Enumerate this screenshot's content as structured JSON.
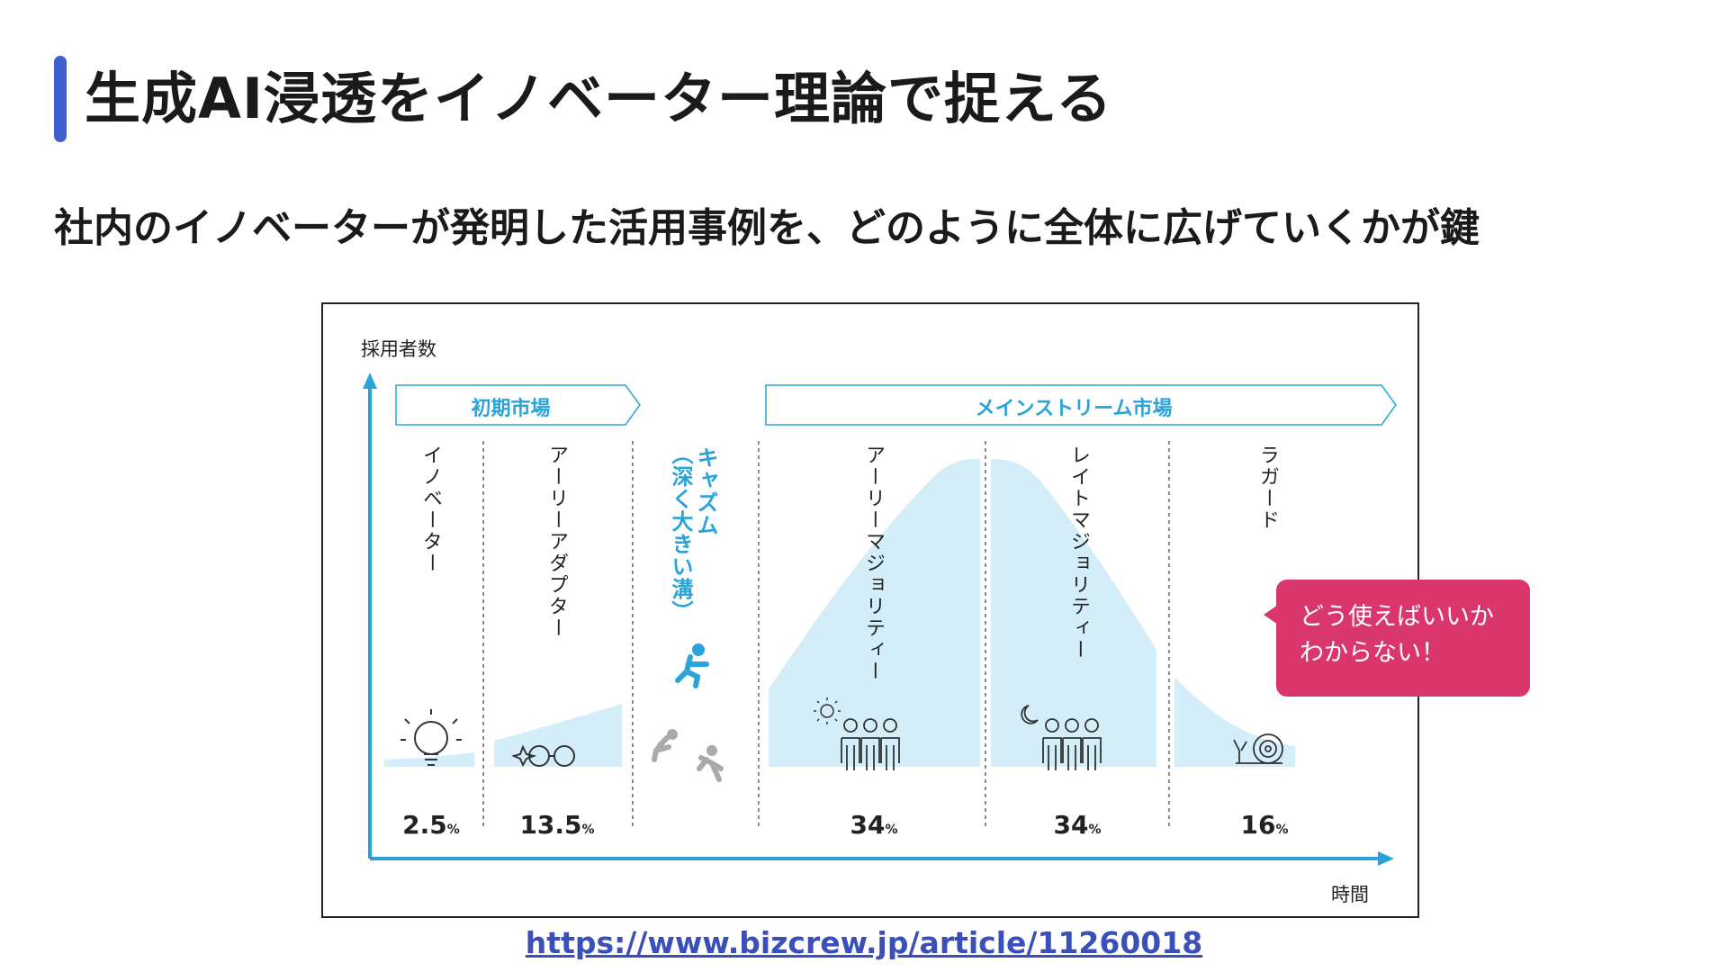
{
  "slide": {
    "title": "生成AI浸透をイノベーター理論で捉える",
    "subtitle": "社内のイノベーターが発明した活用事例を、どのように全体に広げていくかが鍵",
    "source_url": "https://www.bizcrew.jp/article/11260018"
  },
  "diagram": {
    "y_axis_label": "採用者数",
    "x_axis_label": "時間",
    "markets": [
      {
        "label": "初期市場"
      },
      {
        "label": "メインストリーム市場"
      }
    ],
    "segments": [
      {
        "label": "イノベーター",
        "percent": "2.5",
        "unit": "%"
      },
      {
        "label": "アーリーアダプター",
        "percent": "13.5",
        "unit": "%"
      },
      {
        "label": "アーリーマジョリティー",
        "percent": "34",
        "unit": "%"
      },
      {
        "label": "レイトマジョリティー",
        "percent": "34",
        "unit": "%"
      },
      {
        "label": "ラガード",
        "percent": "16",
        "unit": "%"
      }
    ],
    "chasm": {
      "label": "キャズム",
      "sub_label": "（深く大きい溝）"
    },
    "callout": {
      "line1": "どう使えばいいか",
      "line2": "わからない！"
    }
  },
  "colors": {
    "accent_bar": "#3f5fd0",
    "curve_fill": "#d4eef9",
    "axis": "#2aa4d8",
    "callout": "#d9376b",
    "link": "#3a4fb8"
  },
  "icons": [
    "light-bulb-icon",
    "glasses-icon",
    "person-jumping-icon",
    "person-falling-icon",
    "sun-icon",
    "people-group-icon",
    "moon-icon",
    "snail-icon"
  ]
}
